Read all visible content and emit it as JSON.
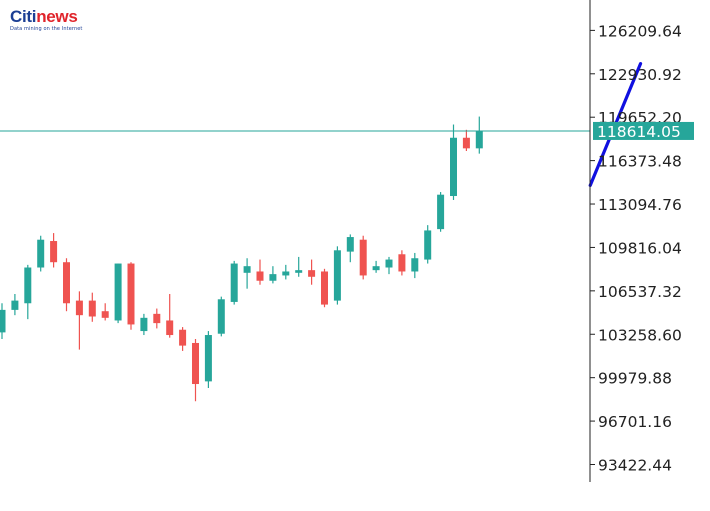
{
  "logo": {
    "part1": "Citi",
    "part2": "news",
    "tagline": "Data mining on the Internet"
  },
  "colors": {
    "up": "#26a69a",
    "down": "#ef5350",
    "hline": "#26a69a",
    "trend": "#1010e0",
    "axis": "#222222",
    "price_bg": "#26a69a"
  },
  "chart_data": {
    "type": "candlestick",
    "title": "",
    "xlabel": "",
    "ylabel": "",
    "y_ticks": [
      "126209.64",
      "122930.92",
      "119652.20",
      "116373.48",
      "113094.76",
      "109816.04",
      "106537.32",
      "103258.60",
      "99979.88",
      "96701.16",
      "93422.44"
    ],
    "ylim": [
      92100,
      127900
    ],
    "current_price": 118614.05,
    "current_price_label": "118614.05",
    "candles": [
      {
        "o": 103400,
        "h": 105600,
        "l": 102900,
        "c": 105100
      },
      {
        "o": 105100,
        "h": 106300,
        "l": 104700,
        "c": 105800
      },
      {
        "o": 105600,
        "h": 108500,
        "l": 104400,
        "c": 108300
      },
      {
        "o": 108300,
        "h": 110700,
        "l": 108000,
        "c": 110400
      },
      {
        "o": 110300,
        "h": 110900,
        "l": 108300,
        "c": 108700
      },
      {
        "o": 108700,
        "h": 109000,
        "l": 105000,
        "c": 105600
      },
      {
        "o": 105800,
        "h": 106500,
        "l": 102100,
        "c": 104700
      },
      {
        "o": 105800,
        "h": 106400,
        "l": 104200,
        "c": 104600
      },
      {
        "o": 105000,
        "h": 105600,
        "l": 104300,
        "c": 104500
      },
      {
        "o": 104300,
        "h": 108600,
        "l": 104100,
        "c": 108600
      },
      {
        "o": 108600,
        "h": 108700,
        "l": 103600,
        "c": 104000
      },
      {
        "o": 103500,
        "h": 104800,
        "l": 103200,
        "c": 104500
      },
      {
        "o": 104800,
        "h": 105200,
        "l": 103700,
        "c": 104100
      },
      {
        "o": 104300,
        "h": 106300,
        "l": 103000,
        "c": 103200
      },
      {
        "o": 103600,
        "h": 103800,
        "l": 102000,
        "c": 102400
      },
      {
        "o": 102600,
        "h": 102900,
        "l": 98200,
        "c": 99500
      },
      {
        "o": 99700,
        "h": 103500,
        "l": 99200,
        "c": 103200
      },
      {
        "o": 103300,
        "h": 106100,
        "l": 103100,
        "c": 105900
      },
      {
        "o": 105700,
        "h": 108800,
        "l": 105500,
        "c": 108600
      },
      {
        "o": 107900,
        "h": 109000,
        "l": 106700,
        "c": 108400
      },
      {
        "o": 108000,
        "h": 108900,
        "l": 107000,
        "c": 107300
      },
      {
        "o": 107300,
        "h": 108400,
        "l": 107100,
        "c": 107800
      },
      {
        "o": 107700,
        "h": 108500,
        "l": 107400,
        "c": 108000
      },
      {
        "o": 107900,
        "h": 109100,
        "l": 107600,
        "c": 108100
      },
      {
        "o": 108100,
        "h": 108900,
        "l": 107000,
        "c": 107600
      },
      {
        "o": 108000,
        "h": 108200,
        "l": 105300,
        "c": 105500
      },
      {
        "o": 105800,
        "h": 109900,
        "l": 105500,
        "c": 109600
      },
      {
        "o": 109500,
        "h": 110800,
        "l": 108700,
        "c": 110600
      },
      {
        "o": 110400,
        "h": 110700,
        "l": 107400,
        "c": 107700
      },
      {
        "o": 108100,
        "h": 108800,
        "l": 107900,
        "c": 108400
      },
      {
        "o": 108300,
        "h": 109100,
        "l": 107800,
        "c": 108900
      },
      {
        "o": 109300,
        "h": 109600,
        "l": 107700,
        "c": 108000
      },
      {
        "o": 108000,
        "h": 109400,
        "l": 107500,
        "c": 109000
      },
      {
        "o": 108900,
        "h": 111500,
        "l": 108600,
        "c": 111100
      },
      {
        "o": 111200,
        "h": 114000,
        "l": 111000,
        "c": 113800
      },
      {
        "o": 113700,
        "h": 119100,
        "l": 113400,
        "c": 118100
      },
      {
        "o": 118100,
        "h": 118700,
        "l": 117100,
        "c": 117300
      },
      {
        "o": 117300,
        "h": 119700,
        "l": 116900,
        "c": 118600
      }
    ],
    "trendline": {
      "from": {
        "index": 45.6,
        "price": 114500
      },
      "to": {
        "index": 49.5,
        "price": 123700
      }
    }
  }
}
